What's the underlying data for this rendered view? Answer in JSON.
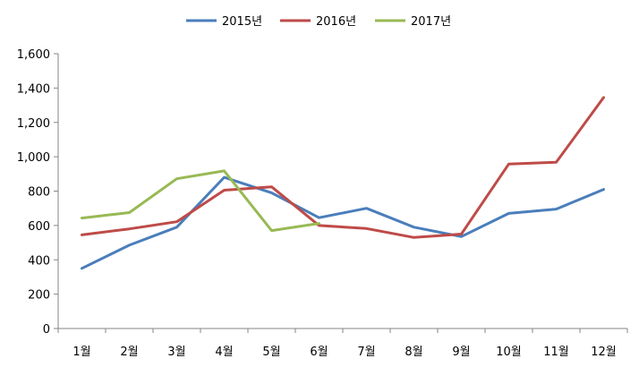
{
  "chart_data": {
    "type": "line",
    "categories": [
      "1월",
      "2월",
      "3월",
      "4월",
      "5월",
      "6월",
      "7월",
      "8월",
      "9월",
      "10월",
      "11월",
      "12월"
    ],
    "series": [
      {
        "name": "2015년",
        "color": "#4a7ebb",
        "values": [
          350,
          485,
          590,
          880,
          790,
          645,
          700,
          590,
          535,
          670,
          695,
          810
        ]
      },
      {
        "name": "2016년",
        "color": "#be4b48",
        "values": [
          545,
          580,
          622,
          805,
          825,
          600,
          582,
          530,
          550,
          958,
          968,
          1345
        ]
      },
      {
        "name": "2017년",
        "color": "#98b954",
        "values": [
          643,
          675,
          872,
          918,
          570,
          612,
          null,
          null,
          null,
          null,
          null,
          null
        ]
      }
    ],
    "yticks": [
      "0",
      "200",
      "400",
      "600",
      "800",
      "1,000",
      "1,200",
      "1,400",
      "1,600"
    ],
    "ylim": [
      0,
      1600
    ],
    "ytick_step": 200,
    "title": "",
    "xlabel": "",
    "ylabel": "",
    "grid": false,
    "legend_position": "top"
  }
}
